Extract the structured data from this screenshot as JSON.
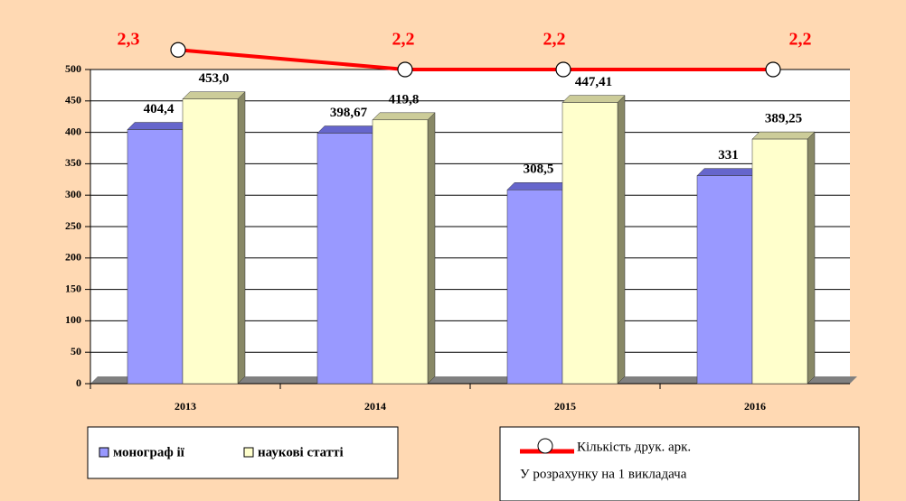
{
  "chart_data": {
    "type": "bar",
    "categories": [
      "2013",
      "2014",
      "2015",
      "2016"
    ],
    "series": [
      {
        "name": "монограф ії",
        "color": "#9999ff",
        "values": [
          404.4,
          398.67,
          308.5,
          331
        ],
        "value_labels": [
          "404,4",
          "398,67",
          "308,5",
          "331"
        ]
      },
      {
        "name": "наукові статті",
        "color": "#ffffcc",
        "values": [
          453.0,
          419.8,
          447.41,
          389.25
        ],
        "value_labels": [
          "453,0",
          "419,8",
          "447,41",
          "389,25"
        ]
      },
      {
        "name": "Кількість друк. арк.",
        "type": "line",
        "axis": "y2",
        "color": "#ff0000",
        "values": [
          2.3,
          2.2,
          2.2,
          2.2
        ],
        "value_labels": [
          "2,3",
          "2,2",
          "2,2",
          "2,2"
        ]
      }
    ],
    "legend_note": "У розрахунку на 1 викладача",
    "ylim": [
      0,
      500
    ],
    "yticks": [
      0,
      50,
      100,
      150,
      200,
      250,
      300,
      350,
      400,
      450,
      500
    ],
    "y2lim": [
      0.6,
      2.2
    ],
    "grid": true
  }
}
